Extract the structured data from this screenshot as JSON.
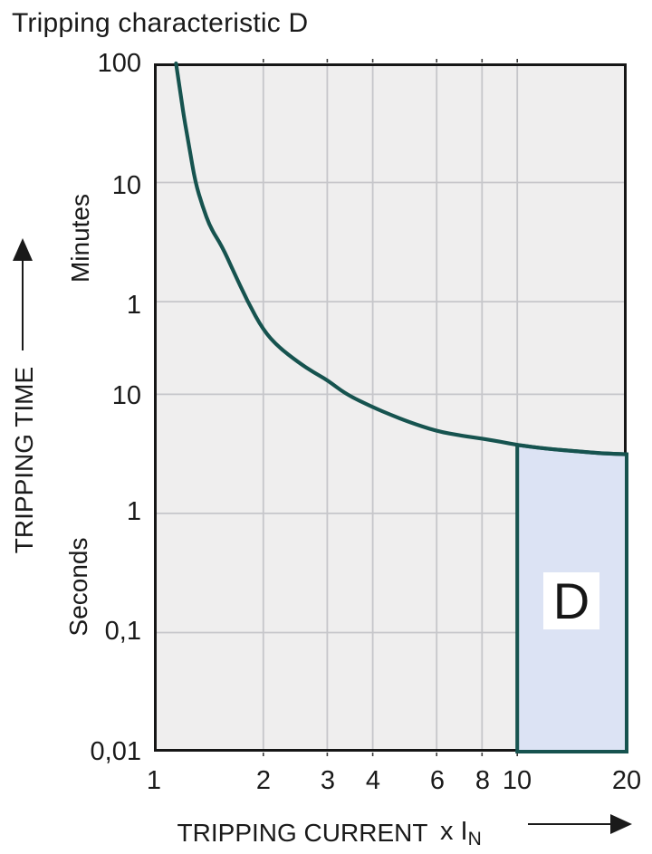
{
  "title": "Tripping characteristic D",
  "colors": {
    "curve": "#16534f",
    "region_fill": "#dce3f4",
    "region_border": "#16534f",
    "plot_bg": "#efeeee",
    "grid": "#c6c6ca",
    "axis": "#161616",
    "text": "#1a1a1a"
  },
  "y_axis": {
    "label": "TRIPPING TIME",
    "unit_upper": "Minutes",
    "unit_lower": "Seconds",
    "scale": "log",
    "range_seconds": [
      0.01,
      6000
    ],
    "ticks": [
      {
        "label": "100",
        "seconds": 6000,
        "unit": "minutes"
      },
      {
        "label": "10",
        "seconds": 600,
        "unit": "minutes"
      },
      {
        "label": "1",
        "seconds": 60,
        "unit": "minutes"
      },
      {
        "label": "10",
        "seconds": 10,
        "unit": "seconds"
      },
      {
        "label": "1",
        "seconds": 1,
        "unit": "seconds"
      },
      {
        "label": "0,1",
        "seconds": 0.1,
        "unit": "seconds"
      },
      {
        "label": "0,01",
        "seconds": 0.01,
        "unit": "seconds"
      }
    ],
    "grid_seconds": [
      600,
      60,
      10,
      1,
      0.1
    ]
  },
  "x_axis": {
    "label": "TRIPPING CURRENT",
    "unit_prefix": "x I",
    "unit_subscript": "N",
    "scale": "log",
    "range": [
      1,
      20
    ],
    "ticks": [
      {
        "label": "1",
        "value": 1
      },
      {
        "label": "2",
        "value": 2
      },
      {
        "label": "3",
        "value": 3
      },
      {
        "label": "4",
        "value": 4
      },
      {
        "label": "6",
        "value": 6
      },
      {
        "label": "8",
        "value": 8
      },
      {
        "label": "10",
        "value": 10
      },
      {
        "label": "20",
        "value": 20
      }
    ],
    "grid_values": [
      2,
      3,
      4,
      6,
      8,
      10
    ]
  },
  "chart_data": {
    "type": "line",
    "title": "Tripping characteristic D",
    "xlabel": "TRIPPING CURRENT (x IN)",
    "ylabel": "TRIPPING TIME",
    "x_scale": "log",
    "y_scale": "log",
    "x_range": [
      1,
      20
    ],
    "y_range_seconds": [
      0.01,
      6000
    ],
    "grid": true,
    "series": [
      {
        "name": "tripping-curve",
        "points_x_in_y_seconds": [
          [
            1.15,
            6000
          ],
          [
            1.18,
            3600
          ],
          [
            1.21,
            2100
          ],
          [
            1.25,
            1200
          ],
          [
            1.3,
            600
          ],
          [
            1.36,
            380
          ],
          [
            1.43,
            250
          ],
          [
            1.54,
            175
          ],
          [
            1.65,
            110
          ],
          [
            1.81,
            60
          ],
          [
            2.0,
            34.5
          ],
          [
            2.2,
            25
          ],
          [
            2.5,
            18.5
          ],
          [
            2.75,
            15.3
          ],
          [
            3.0,
            13.2
          ],
          [
            3.38,
            10
          ],
          [
            4.0,
            7.8
          ],
          [
            4.5,
            6.7
          ],
          [
            5.0,
            5.9
          ],
          [
            6.0,
            4.9
          ],
          [
            7.0,
            4.5
          ],
          [
            8.0,
            4.25
          ],
          [
            9.0,
            4.0
          ],
          [
            10.0,
            3.75
          ],
          [
            12.0,
            3.5
          ],
          [
            15.0,
            3.3
          ],
          [
            17.0,
            3.2
          ],
          [
            20.0,
            3.14
          ]
        ]
      }
    ],
    "region": {
      "label": "D",
      "x_from": 10,
      "x_to": 20,
      "bottom_seconds": 0.01,
      "top": "curve"
    }
  }
}
